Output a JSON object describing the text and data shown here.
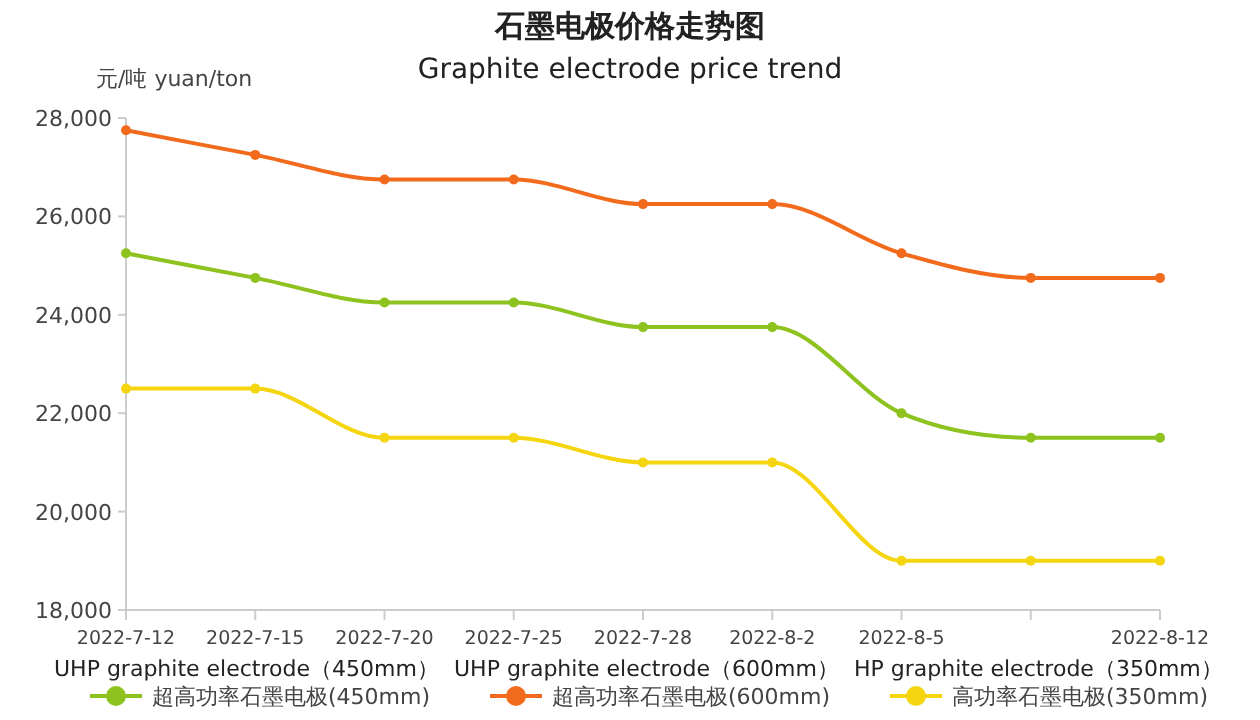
{
  "chart_data": {
    "type": "line",
    "title": "石墨电极价格走势图",
    "subtitle": "Graphite electrode price trend",
    "ylabel": "元/吨 yuan/ton",
    "categories": [
      "2022-7-12",
      "2022-7-15",
      "2022-7-20",
      "2022-7-25",
      "2022-7-28",
      "2022-8-2",
      "2022-8-5",
      null,
      "2022-8-12"
    ],
    "ylim": [
      18000,
      28000
    ],
    "yticks": [
      {
        "value": 18000,
        "label": "18,000"
      },
      {
        "value": 20000,
        "label": "20,000"
      },
      {
        "value": 22000,
        "label": "22,000"
      },
      {
        "value": 24000,
        "label": "24,000"
      },
      {
        "value": 26000,
        "label": "26,000"
      },
      {
        "value": 28000,
        "label": "28,000"
      }
    ],
    "series": [
      {
        "name": "超高功率石墨电极(450mm)",
        "color": "#8dc21f",
        "values": [
          25250,
          24750,
          24250,
          24250,
          23750,
          23750,
          22000,
          21500,
          21500
        ]
      },
      {
        "name": "超高功率石墨电极(600mm)",
        "color": "#f26b1d",
        "values": [
          27750,
          27250,
          26750,
          26750,
          26250,
          26250,
          25250,
          24750,
          24750
        ]
      },
      {
        "name": "高功率石墨电极(350mm)",
        "color": "#f5d50f",
        "values": [
          22500,
          22500,
          21500,
          21500,
          21000,
          21000,
          19000,
          19000,
          19000
        ]
      }
    ],
    "annotations": [
      "UHP graphite electrode（450mm）",
      "UHP graphite electrode（600mm）",
      "HP graphite electrode（350mm）"
    ],
    "legend": "bottom",
    "marker": "circle",
    "line_style": "solid",
    "grid": false
  }
}
